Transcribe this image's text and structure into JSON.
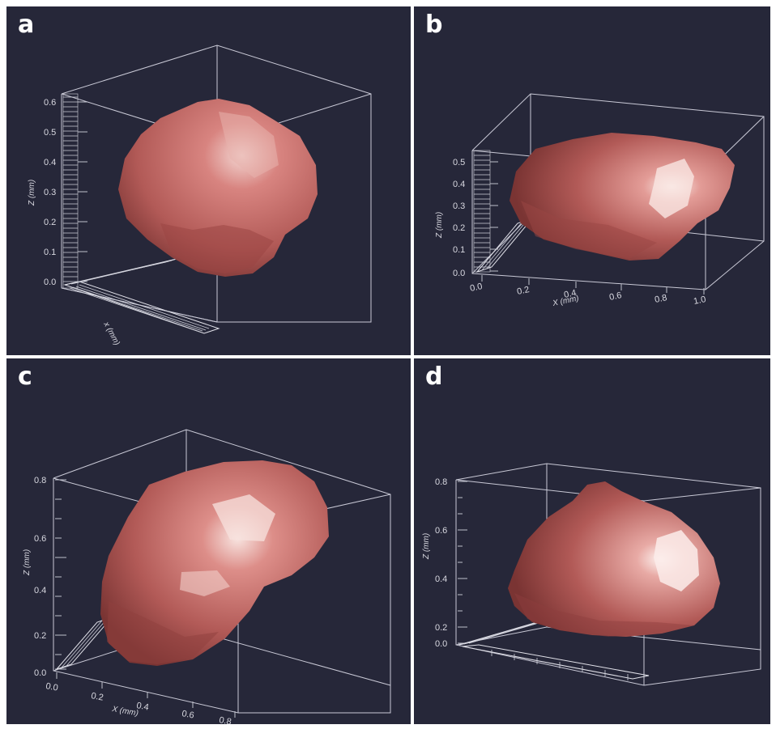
{
  "panels": [
    {
      "letter": "a",
      "z_axis": {
        "title": "Z (mm)",
        "ticks": [
          "0.6",
          "0.5",
          "0.4",
          "0.3",
          "0.2",
          "0.1",
          "0.0"
        ]
      },
      "x_axis": {
        "title": "x (mm)"
      }
    },
    {
      "letter": "b",
      "z_axis": {
        "title": "Z (mm)",
        "ticks": [
          "0.5",
          "0.4",
          "0.3",
          "0.2",
          "0.1",
          "0.0"
        ]
      },
      "x_axis": {
        "title": "X (mm)",
        "ticks": [
          "0.0",
          "0.2",
          "0.4",
          "0.6",
          "0.8",
          "1.0"
        ]
      }
    },
    {
      "letter": "c",
      "z_axis": {
        "title": "Z (mm)",
        "ticks": [
          "0.8",
          "0.6",
          "0.4",
          "0.2",
          "0.0"
        ]
      },
      "x_axis": {
        "title": "X (mm)",
        "ticks": [
          "0.0",
          "0.2",
          "0.4",
          "0.6",
          "0.8"
        ]
      }
    },
    {
      "letter": "d",
      "z_axis": {
        "title": "Z (mm)",
        "ticks": [
          "0.8",
          "0.6",
          "0.4",
          "0.2",
          "0.0"
        ]
      }
    }
  ],
  "colors": {
    "background": "#262739",
    "surface": "#b9615e",
    "surface_highlight": "#f4dcd8",
    "box_lines": "#c9c9d6"
  }
}
